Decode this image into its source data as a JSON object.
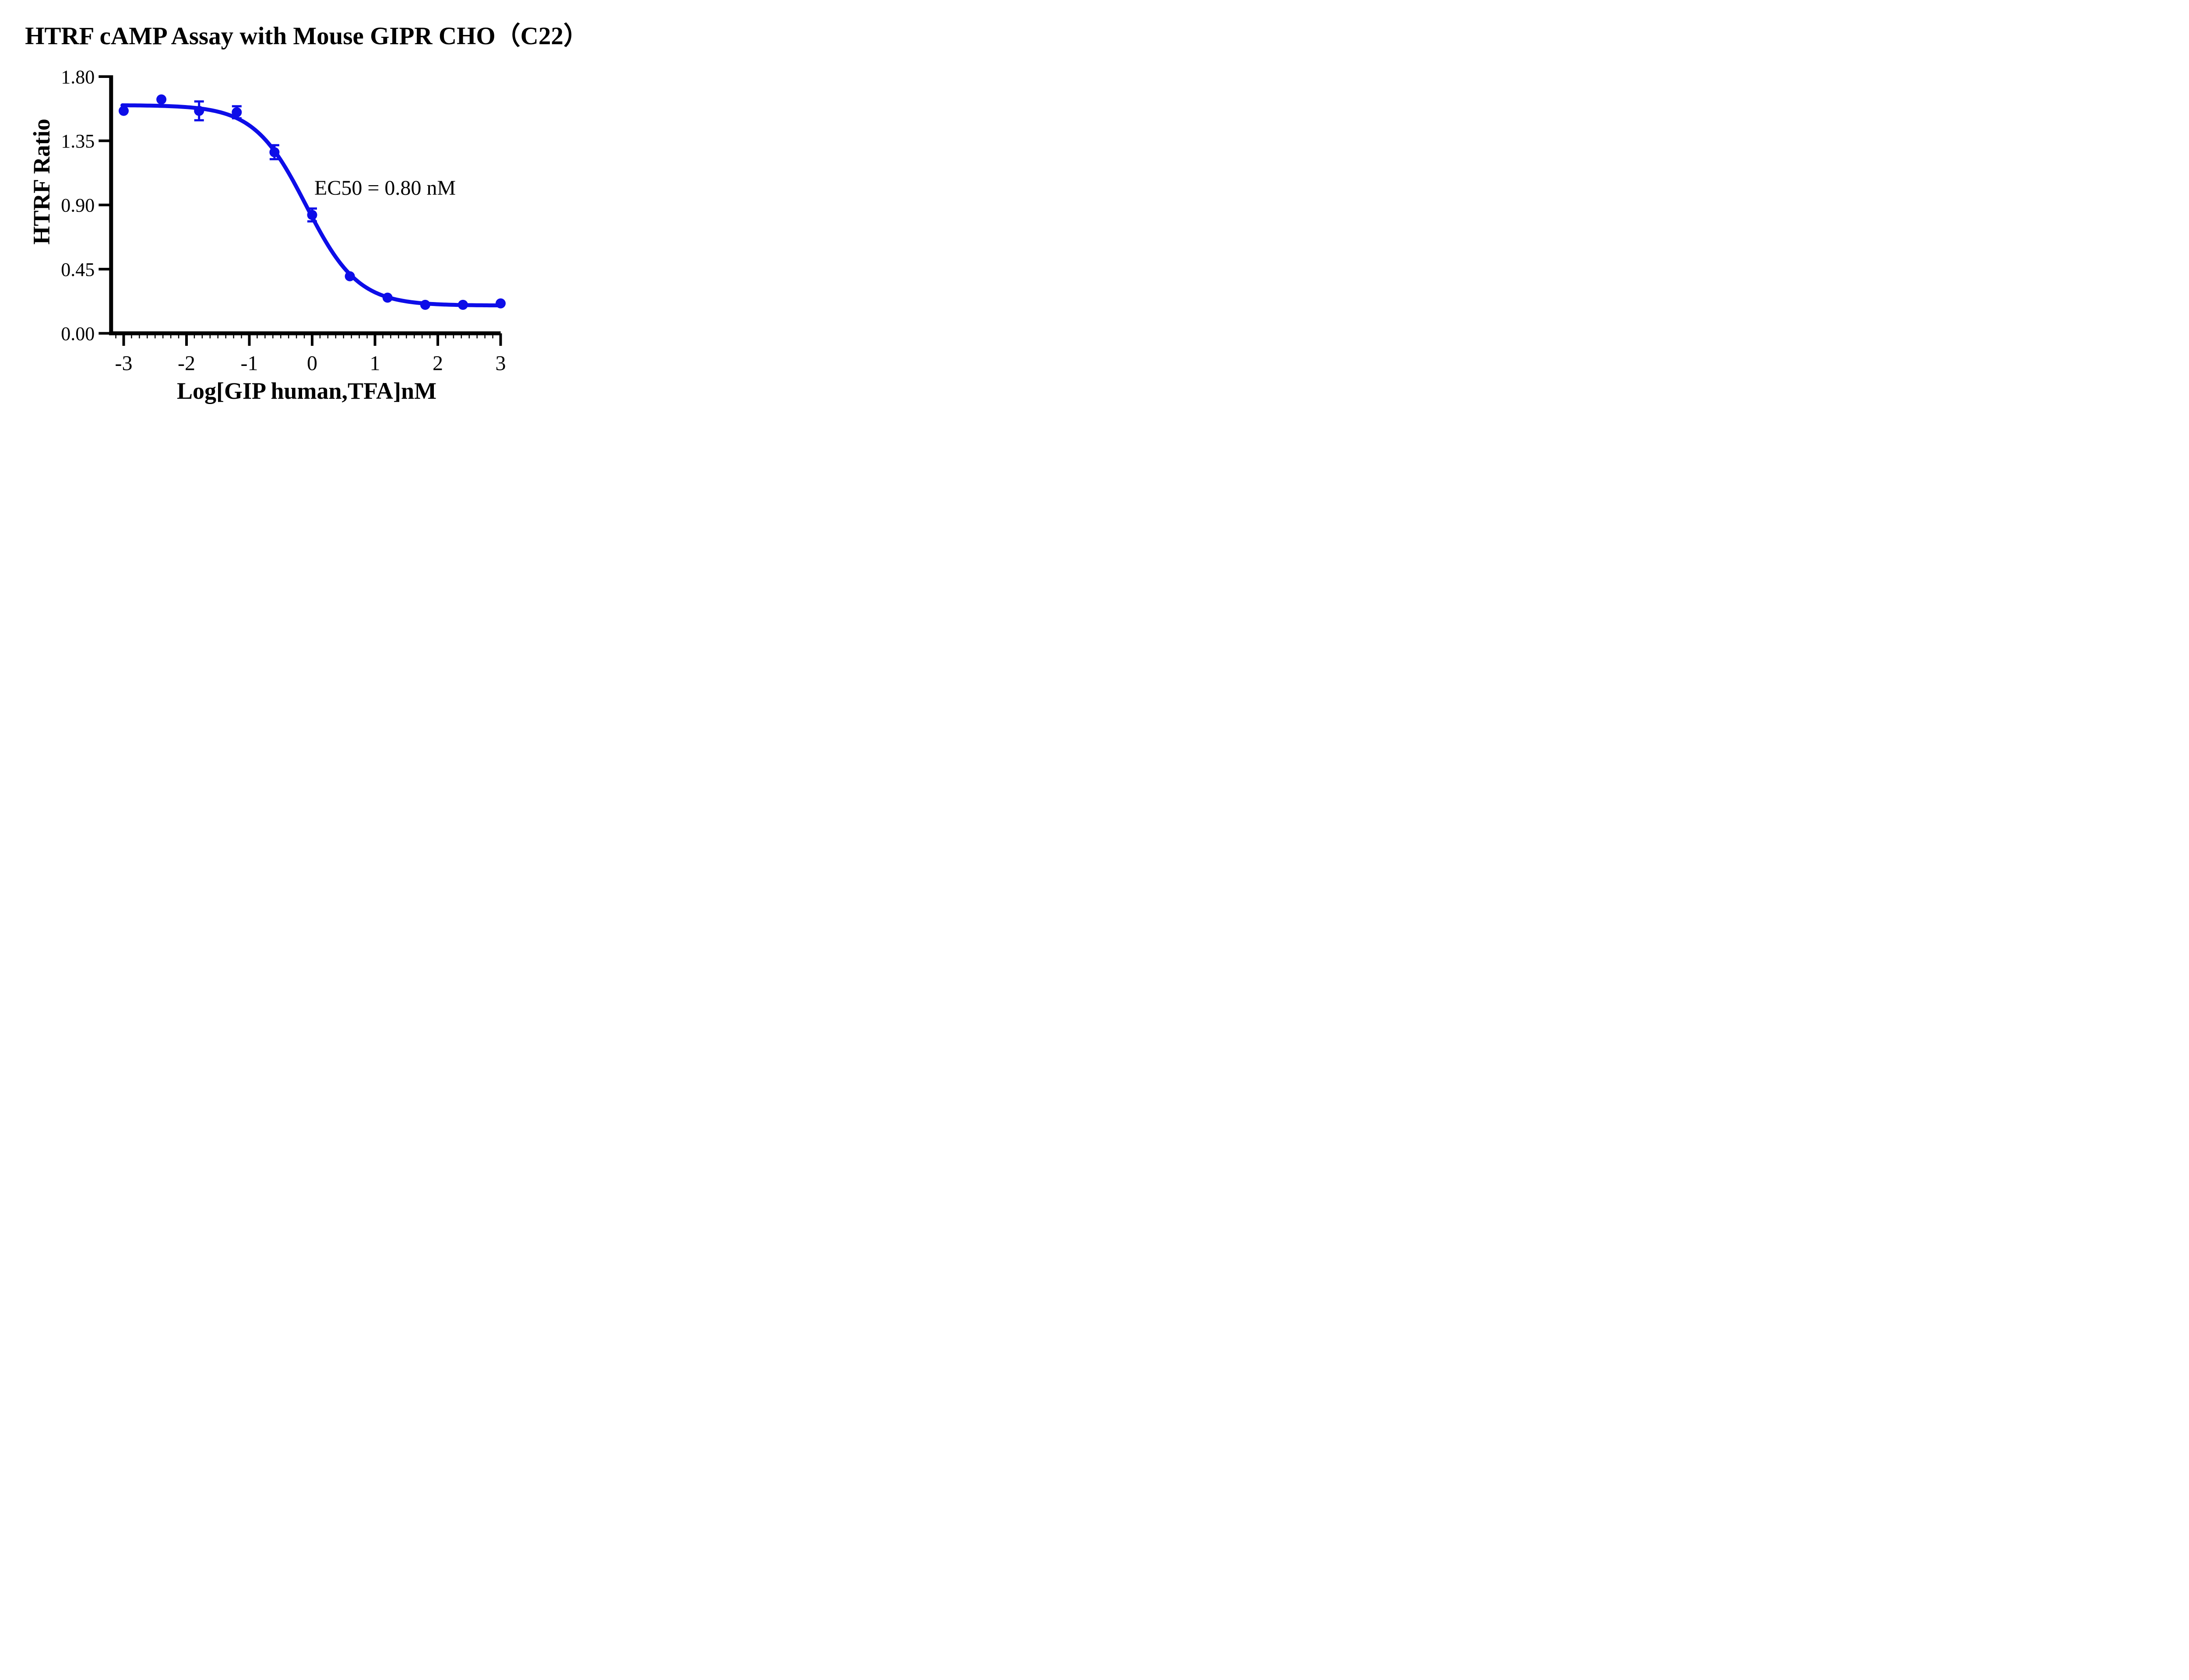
{
  "title": "HTRF cAMP Assay with Mouse GIPR CHO（C22）",
  "annotation": {
    "ec50": "EC50 = 0.80 nM"
  },
  "chart_data": {
    "type": "scatter",
    "title": "HTRF cAMP Assay with Mouse GIPR CHO（C22）",
    "xlabel": "Log[GIP human,TFA]nM",
    "ylabel": "HTRF Ratio",
    "xlim": [
      -3.2,
      3.0
    ],
    "ylim": [
      0.0,
      1.8
    ],
    "x_ticks": [
      -3,
      -2,
      -1,
      0,
      1,
      2,
      3
    ],
    "x_tick_labels": [
      "-3",
      "-2",
      "-1",
      "0",
      "1",
      "2",
      "3"
    ],
    "x_minor_tick_step": 0.125,
    "y_ticks": [
      1.8,
      1.35,
      0.9,
      0.45,
      0.0
    ],
    "y_tick_labels": [
      "1.80",
      "1.35",
      "0.90",
      "0.45",
      "0.00"
    ],
    "grid": false,
    "legend": false,
    "series": [
      {
        "name": "GIP human,TFA",
        "color": "#0d0de8",
        "marker": "circle",
        "x": [
          -3.0,
          -2.4,
          -1.8,
          -1.2,
          -0.6,
          0.0,
          0.6,
          1.2,
          1.8,
          2.4,
          3.0
        ],
        "y": [
          1.56,
          1.64,
          1.56,
          1.55,
          1.27,
          0.83,
          0.4,
          0.25,
          0.2,
          0.2,
          0.21
        ],
        "y_error": [
          0,
          0,
          0.066,
          0.042,
          0.049,
          0.045,
          0,
          0,
          0,
          0,
          0
        ]
      }
    ],
    "fit_curve": {
      "model": "sigmoidal dose-response",
      "top": 1.6,
      "bottom": 0.195,
      "hill_slope": 1.05,
      "log_ec50": -0.097,
      "ec50_nM": 0.8,
      "x_start": -3.02,
      "x_end": 3.0
    }
  }
}
